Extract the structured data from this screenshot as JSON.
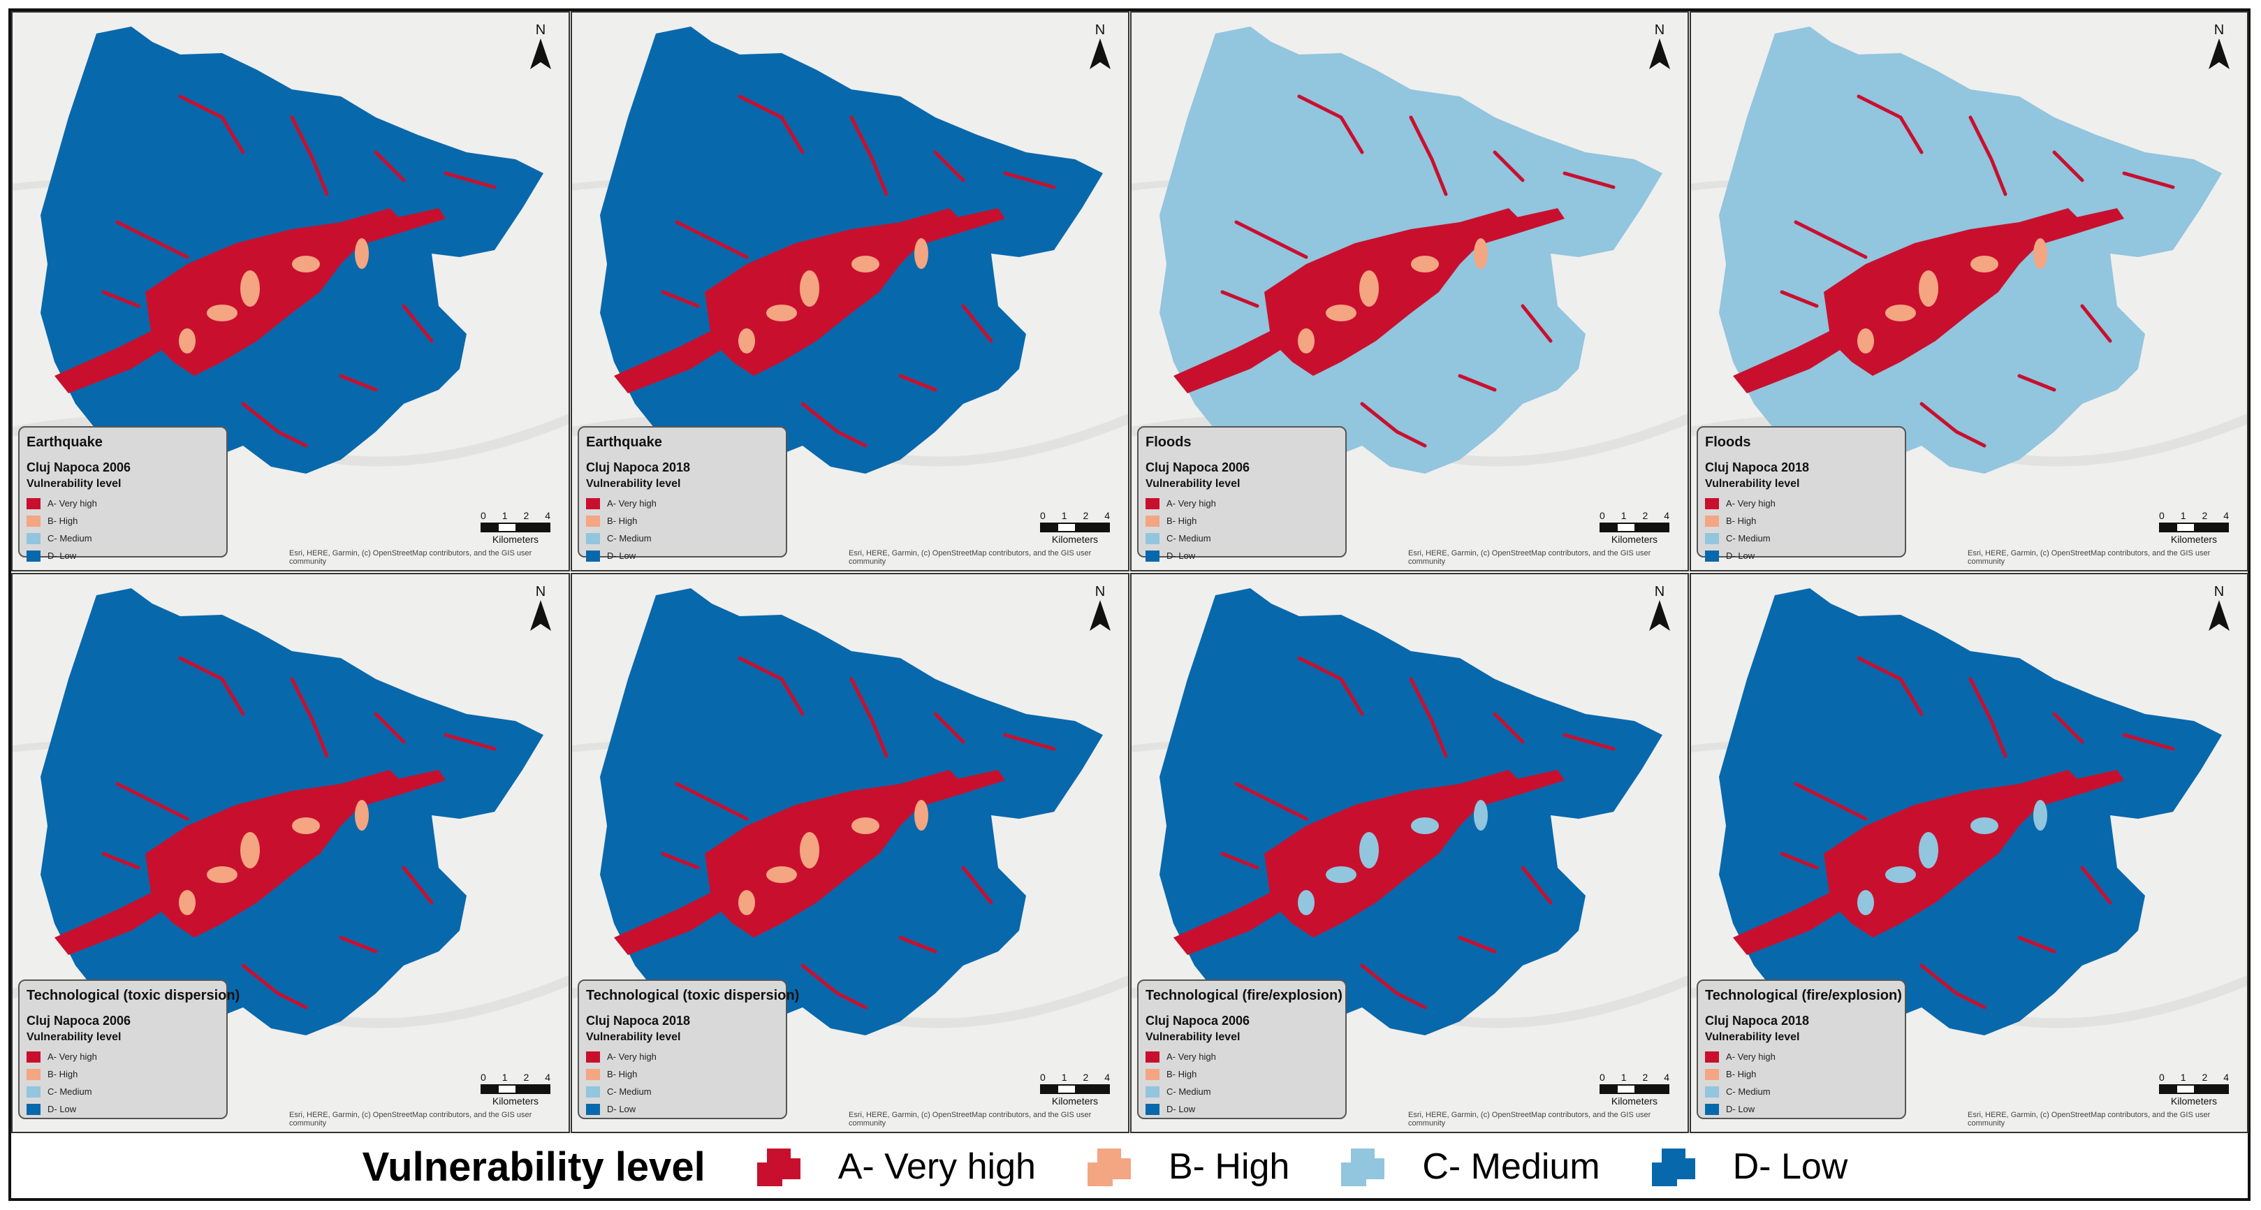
{
  "colors": {
    "very_high": "#c8102e",
    "high": "#f4a582",
    "medium": "#92c5de",
    "low": "#0868ac",
    "background": "#efefee"
  },
  "legend_items": [
    "A- Very high",
    "B- High",
    "C- Medium",
    "D- Low"
  ],
  "vulnerability_label": "Vulnerability level",
  "scale": {
    "ticks": [
      "0",
      "1",
      "2",
      "4"
    ],
    "unit": "Kilometers"
  },
  "north_label": "N",
  "credit": "Esri, HERE, Garmin, (c) OpenStreetMap contributors, and the GIS user community",
  "panels": [
    {
      "hazard": "Earthquake",
      "city": "Cluj Napoca 2006",
      "base": "low",
      "urban": "very_high",
      "accent": "high"
    },
    {
      "hazard": "Earthquake",
      "city": "Cluj Napoca 2018",
      "base": "low",
      "urban": "very_high",
      "accent": "high"
    },
    {
      "hazard": "Floods",
      "city": "Cluj Napoca 2006",
      "base": "medium",
      "urban": "very_high",
      "accent": "high"
    },
    {
      "hazard": "Floods",
      "city": "Cluj Napoca 2018",
      "base": "medium",
      "urban": "very_high",
      "accent": "high"
    },
    {
      "hazard": "Technological (toxic dispersion)",
      "city": "Cluj Napoca 2006",
      "base": "low",
      "urban": "very_high",
      "accent": "high"
    },
    {
      "hazard": "Technological (toxic dispersion)",
      "city": "Cluj Napoca 2018",
      "base": "low",
      "urban": "very_high",
      "accent": "high"
    },
    {
      "hazard": "Technological (fire/explosion)",
      "city": "Cluj Napoca 2006",
      "base": "low",
      "urban": "very_high",
      "accent": "medium"
    },
    {
      "hazard": "Technological (fire/explosion)",
      "city": "Cluj Napoca 2018",
      "base": "low",
      "urban": "very_high",
      "accent": "medium"
    }
  ],
  "bottom_legend": {
    "title": "Vulnerability level",
    "items": [
      {
        "label": "A- Very high",
        "color": "#c8102e"
      },
      {
        "label": "B- High",
        "color": "#f4a582"
      },
      {
        "label": "C- Medium",
        "color": "#92c5de"
      },
      {
        "label": "D- Low",
        "color": "#0868ac"
      }
    ]
  }
}
